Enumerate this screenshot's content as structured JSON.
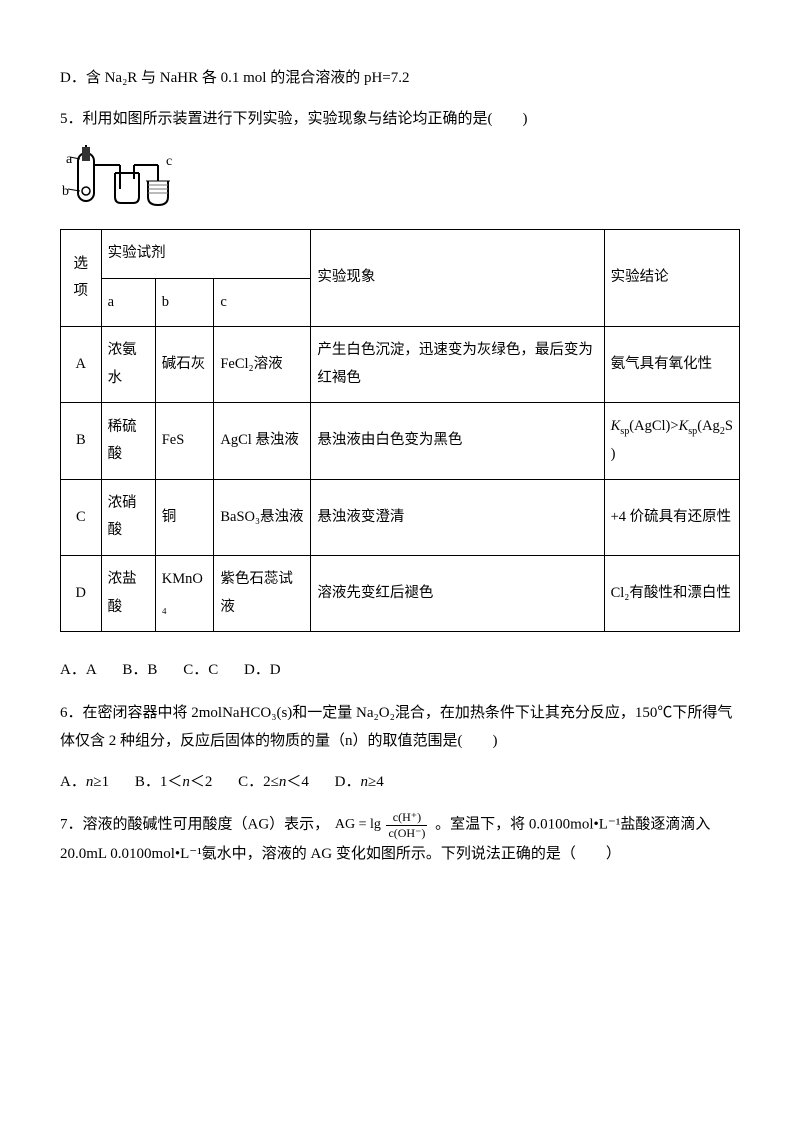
{
  "q4_optD": "D．含 Na₂R 与 NaHR 各 0.1 mol 的混合溶液的 pH=7.2",
  "q5_stem": "5．利用如图所示装置进行下列实验，实验现象与结论均正确的是(　　)",
  "diagram": {
    "labels": {
      "a": "a",
      "b": "b",
      "c": "c"
    }
  },
  "table": {
    "header": {
      "option": "选项",
      "reagent": "实验试剂",
      "a": "a",
      "b": "b",
      "c": "c",
      "phen": "实验现象",
      "conc": "实验结论"
    },
    "rows": [
      {
        "opt": "A",
        "a": "浓氨水",
        "b": "碱石灰",
        "c": "FeCl₂溶液",
        "phen": "产生白色沉淀，迅速变为灰绿色，最后变为红褐色",
        "conc": "氨气具有氧化性"
      },
      {
        "opt": "B",
        "a": "稀硫酸",
        "b": "FeS",
        "c": "AgCl 悬浊液",
        "phen": "悬浊液由白色变为黑色",
        "conc_html": "<span class=\"italic\">K</span><span class=\"sub\">sp</span>(AgCl)><span class=\"italic\">K</span><span class=\"sub\">sp</span>(Ag<span class=\"sub\">2</span>S)"
      },
      {
        "opt": "C",
        "a": "浓硝酸",
        "b": "铜",
        "c": "BaSO₃悬浊液",
        "phen": "悬浊液变澄清",
        "conc": "+4 价硫具有还原性"
      },
      {
        "opt": "D",
        "a": "浓盐酸",
        "b": "KMnO₄",
        "c": "紫色石蕊试液",
        "phen": "溶液先变红后褪色",
        "conc": "Cl₂有酸性和漂白性"
      }
    ]
  },
  "q5_options": {
    "A": "A．A",
    "B": "B．B",
    "C": "C．C",
    "D": "D．D"
  },
  "q6_stem": "6．在密闭容器中将 2molNaHCO₃(s)和一定量 Na₂O₂混合，在加热条件下让其充分反应，150℃下所得气体仅含 2 种组分，反应后固体的物质的量（n）的取值范围是(　　)",
  "q6_options_html": {
    "A": "A．<span class=\"italic\">n</span>≥1",
    "B": "B．1＜<span class=\"italic\">n</span>＜2",
    "C": "C．2≤<span class=\"italic\">n</span>＜4",
    "D": "D．<span class=\"italic\">n</span>≥4"
  },
  "q7_pre": "7．溶液的酸碱性可用酸度（AG）表示，",
  "q7_formula_lhs": "AG = lg",
  "q7_frac_num": "c(H⁺)",
  "q7_frac_den": "c(OH⁻)",
  "q7_post": "。室温下，将 0.0100mol•L⁻¹盐酸逐滴滴入 20.0mL 0.0100mol•L⁻¹氨水中，溶液的 AG 变化如图所示。下列说法正确的是（　　）"
}
